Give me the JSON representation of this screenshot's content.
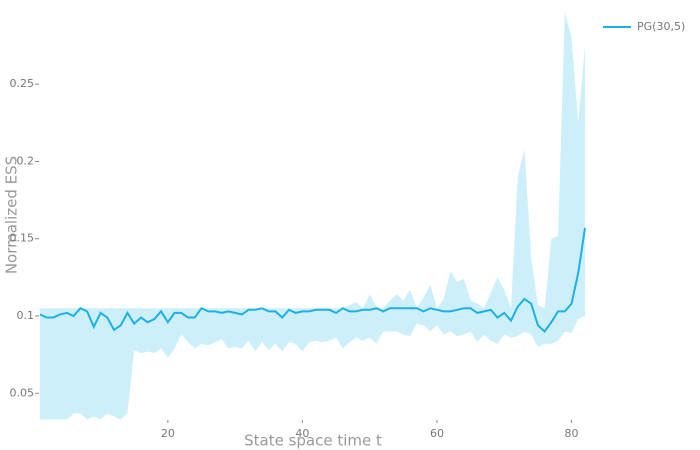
{
  "chart_data": {
    "type": "line",
    "xlabel": "State space time t",
    "ylabel": "Normalized ESS",
    "x": [
      1,
      2,
      3,
      4,
      5,
      6,
      7,
      8,
      9,
      10,
      11,
      12,
      13,
      14,
      15,
      16,
      17,
      18,
      19,
      20,
      21,
      22,
      23,
      24,
      25,
      26,
      27,
      28,
      29,
      30,
      31,
      32,
      33,
      34,
      35,
      36,
      37,
      38,
      39,
      40,
      41,
      42,
      43,
      44,
      45,
      46,
      47,
      48,
      49,
      50,
      51,
      52,
      53,
      54,
      55,
      56,
      57,
      58,
      59,
      60,
      61,
      62,
      63,
      64,
      65,
      66,
      67,
      68,
      69,
      70,
      71,
      72,
      73,
      74,
      75,
      76,
      77,
      78,
      79,
      80,
      81,
      82
    ],
    "series": [
      {
        "name": "PG(30,5)",
        "color": "#1cb0e6",
        "values": [
          0.101,
          0.099,
          0.099,
          0.101,
          0.102,
          0.1,
          0.105,
          0.103,
          0.093,
          0.102,
          0.099,
          0.091,
          0.094,
          0.102,
          0.095,
          0.099,
          0.096,
          0.098,
          0.103,
          0.096,
          0.102,
          0.102,
          0.099,
          0.099,
          0.105,
          0.103,
          0.103,
          0.102,
          0.103,
          0.102,
          0.101,
          0.104,
          0.104,
          0.105,
          0.103,
          0.103,
          0.099,
          0.104,
          0.102,
          0.103,
          0.103,
          0.104,
          0.104,
          0.104,
          0.102,
          0.105,
          0.103,
          0.103,
          0.104,
          0.104,
          0.105,
          0.103,
          0.105,
          0.105,
          0.105,
          0.105,
          0.105,
          0.103,
          0.105,
          0.104,
          0.103,
          0.103,
          0.104,
          0.105,
          0.105,
          0.102,
          0.103,
          0.104,
          0.099,
          0.102,
          0.097,
          0.106,
          0.111,
          0.108,
          0.094,
          0.09,
          0.096,
          0.103,
          0.103,
          0.108,
          0.128,
          0.157
        ]
      }
    ],
    "band": {
      "color": "#cdeffa",
      "upper": [
        0.105,
        0.105,
        0.105,
        0.105,
        0.105,
        0.105,
        0.105,
        0.105,
        0.105,
        0.105,
        0.105,
        0.105,
        0.105,
        0.105,
        0.105,
        0.105,
        0.105,
        0.105,
        0.105,
        0.105,
        0.105,
        0.105,
        0.105,
        0.105,
        0.105,
        0.105,
        0.105,
        0.105,
        0.105,
        0.105,
        0.105,
        0.105,
        0.105,
        0.105,
        0.105,
        0.105,
        0.105,
        0.105,
        0.105,
        0.105,
        0.105,
        0.105,
        0.105,
        0.105,
        0.105,
        0.105,
        0.107,
        0.109,
        0.105,
        0.114,
        0.106,
        0.105,
        0.11,
        0.114,
        0.11,
        0.117,
        0.105,
        0.112,
        0.12,
        0.105,
        0.111,
        0.129,
        0.122,
        0.124,
        0.11,
        0.108,
        0.105,
        0.115,
        0.125,
        0.117,
        0.105,
        0.19,
        0.208,
        0.138,
        0.107,
        0.105,
        0.15,
        0.152,
        0.297,
        0.28,
        0.225,
        0.275
      ],
      "lower": [
        0.033,
        0.033,
        0.033,
        0.033,
        0.033,
        0.037,
        0.037,
        0.033,
        0.035,
        0.033,
        0.037,
        0.035,
        0.033,
        0.037,
        0.078,
        0.076,
        0.077,
        0.076,
        0.079,
        0.073,
        0.079,
        0.088,
        0.083,
        0.079,
        0.082,
        0.081,
        0.083,
        0.085,
        0.079,
        0.08,
        0.079,
        0.084,
        0.077,
        0.083,
        0.078,
        0.082,
        0.077,
        0.083,
        0.082,
        0.077,
        0.083,
        0.084,
        0.083,
        0.084,
        0.086,
        0.079,
        0.083,
        0.086,
        0.084,
        0.086,
        0.082,
        0.09,
        0.09,
        0.09,
        0.088,
        0.087,
        0.095,
        0.094,
        0.09,
        0.094,
        0.088,
        0.09,
        0.087,
        0.088,
        0.09,
        0.083,
        0.088,
        0.084,
        0.082,
        0.088,
        0.086,
        0.087,
        0.09,
        0.088,
        0.08,
        0.082,
        0.082,
        0.084,
        0.09,
        0.089,
        0.098,
        0.1
      ]
    },
    "xlim": [
      1,
      82
    ],
    "xticks": [
      20,
      40,
      60,
      80
    ],
    "ylim": [
      0.0327,
      0.298
    ],
    "yticks": [
      0.05,
      0.1,
      0.15,
      0.2,
      0.25
    ],
    "grid": false,
    "legend": "top-right"
  }
}
